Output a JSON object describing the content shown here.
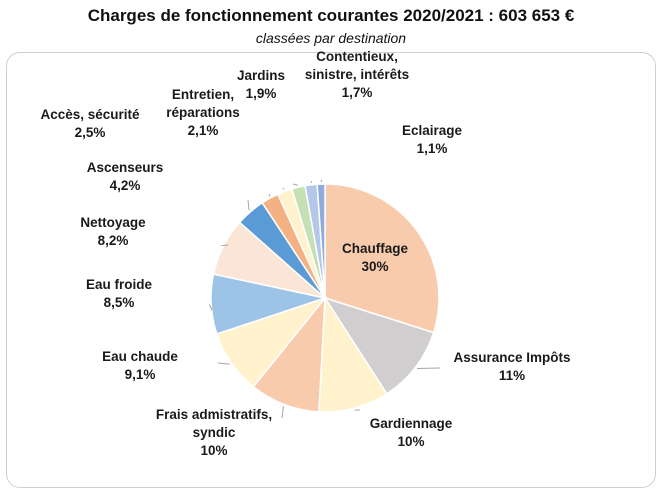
{
  "chart_data": {
    "type": "pie",
    "title": "Charges de fonctionnement courantes 2020/2021 : 603 653 €",
    "subtitle": "classées par destination",
    "slices": [
      {
        "label": [
          "Chauffage"
        ],
        "value_label": "30%",
        "value": 30.0,
        "color": "#f8cbad"
      },
      {
        "label": [
          "Assurance Impôts"
        ],
        "value_label": "11%",
        "value": 11.0,
        "color": "#d0cece"
      },
      {
        "label": [
          "Gardiennage"
        ],
        "value_label": "10%",
        "value": 10.0,
        "color": "#fff2cc"
      },
      {
        "label": [
          "Frais admistratifs,",
          "syndic"
        ],
        "value_label": "10%",
        "value": 10.0,
        "color": "#f8cbad"
      },
      {
        "label": [
          "Eau chaude"
        ],
        "value_label": "9,1%",
        "value": 9.1,
        "color": "#fff2cc"
      },
      {
        "label": [
          "Eau froide"
        ],
        "value_label": "8,5%",
        "value": 8.5,
        "color": "#9dc3e6"
      },
      {
        "label": [
          "Nettoyage"
        ],
        "value_label": "8,2%",
        "value": 8.2,
        "color": "#fbe5d6"
      },
      {
        "label": [
          "Ascenseurs"
        ],
        "value_label": "4,2%",
        "value": 4.2,
        "color": "#5b9bd5"
      },
      {
        "label": [
          "Accès, sécurité"
        ],
        "value_label": "2,5%",
        "value": 2.5,
        "color": "#f4b183"
      },
      {
        "label": [
          "Entretien,",
          "réparations"
        ],
        "value_label": "2,1%",
        "value": 2.1,
        "color": "#fff2cc"
      },
      {
        "label": [
          "Jardins"
        ],
        "value_label": "1,9%",
        "value": 1.9,
        "color": "#c5e0b4"
      },
      {
        "label": [
          "Contentieux,",
          "sinistre, intérêts"
        ],
        "value_label": "1,7%",
        "value": 1.7,
        "color": "#b4c7e7"
      },
      {
        "label": [
          "Eclairage"
        ],
        "value_label": "1,1%",
        "value": 1.1,
        "color": "#8faadc"
      }
    ]
  }
}
